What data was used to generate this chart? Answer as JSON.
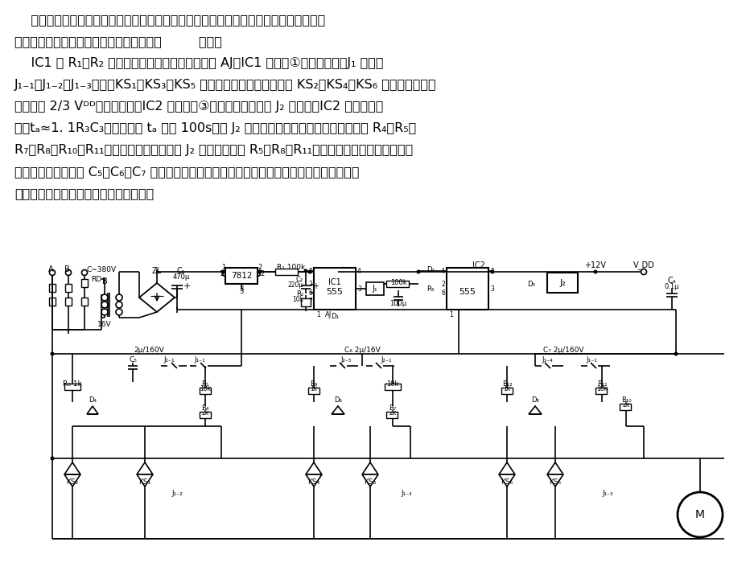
{
  "bg": "#ffffff",
  "lw": 1.2,
  "text_lines": [
    "    交流电动机的启动电流是正常运转电流的几倍，甚至十几倍。本启动器可以对电动机实",
    "现降压限流启动，节能效果显著。电路如图         所示。",
    "    IC1 和 R₁、R₂ 等组成单稳态触发电路。按一下 AJ，IC1 置位，①脚为高电平，J₁ 吸合，",
    "J₁₋₁、J₁₋₂、J₁₋₃闭合，KS₁、KS₃、KS₅ 分别被触发导通，继而又使 KS₂、KS₄、KS₆ 导通，三相电源",
    "电至高于 2/3 Vᴰᴰ阈值电平时，IC2 才复位，③脚为低电平。此时 J₂ 才动作。IC2 的延时时间",
    "为：tₐ≈1. 1R₃C₃，图示参数 tₐ 约为 100s。在 J₂ 动作前，由于三相电路中分别串联了 R₄、R₅、",
    "R₇、R₈、R₁₀、R₁₁，故为降压启动。而在 J₂ 动作后，电阵 R₅、R₈、R₁₁分别被短接，限流电阵减小，",
    "触发电流加大，同时 C₅、C₆、C₇ 开路，无充电延时时间，使双向可控硬基本全开通，输出电压",
    "接近额定电源电压，电机进入正常运转。"
  ]
}
